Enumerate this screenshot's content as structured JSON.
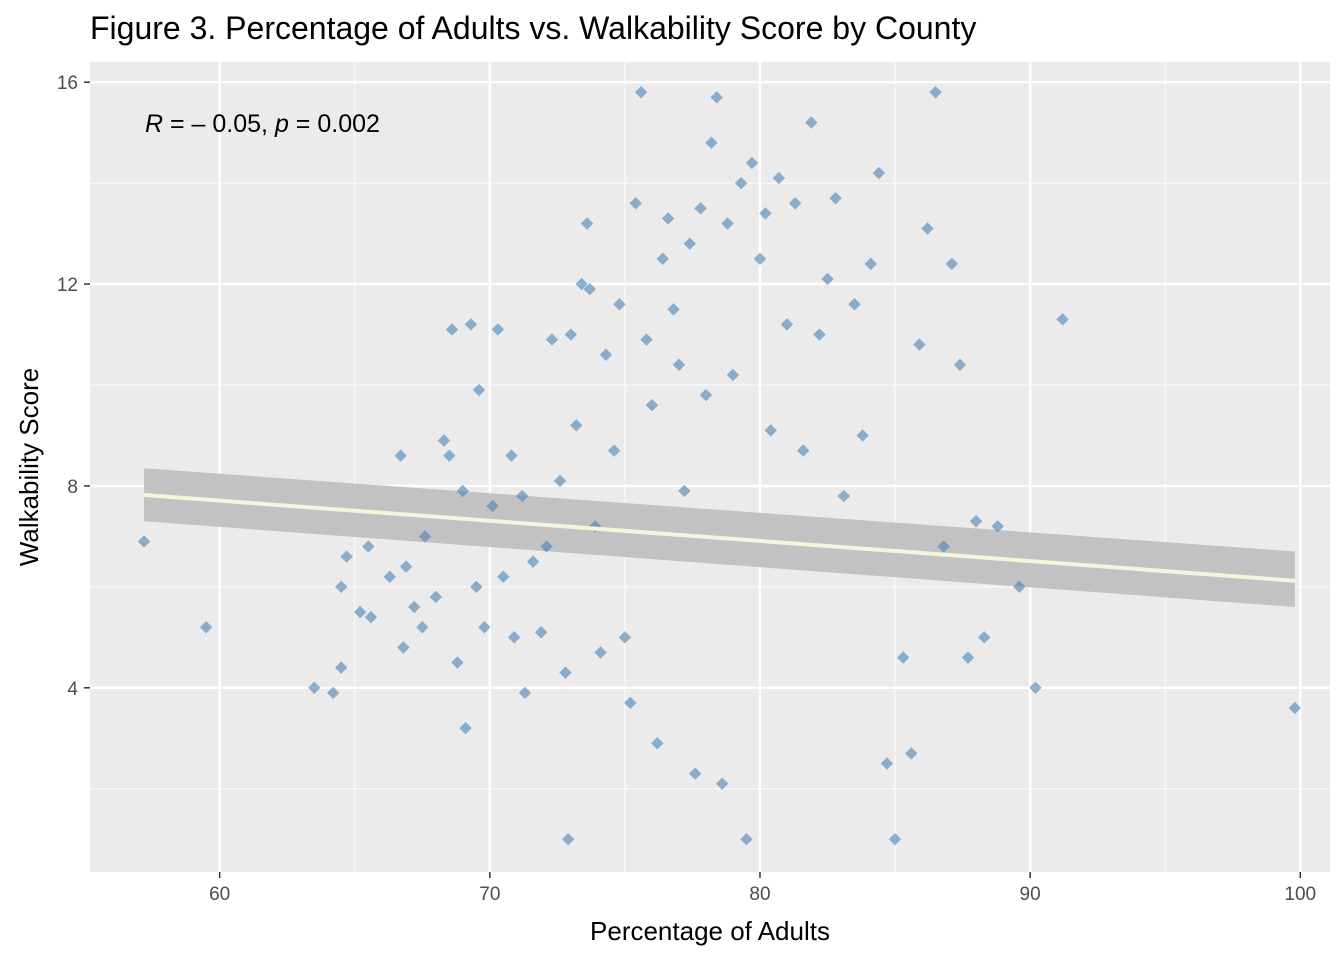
{
  "chart_data": {
    "type": "scatter",
    "title": "Figure 3. Percentage of Adults vs. Walkability Score by County",
    "xlabel": "Percentage of Adults",
    "ylabel": "Walkability Score",
    "xlim": [
      55.2,
      101.1
    ],
    "ylim": [
      0.35,
      16.4
    ],
    "x_ticks": [
      60,
      70,
      80,
      90,
      100
    ],
    "y_ticks": [
      4,
      8,
      12,
      16
    ],
    "grid": true,
    "background": "#ebebeb",
    "point_color": "#4682b4",
    "point_shape": "diamond",
    "annotation": {
      "r_label": "R",
      "r_text": " = – 0.05, ",
      "p_label": "p",
      "p_text": " = 0.002"
    },
    "trend": {
      "x": [
        57.2,
        99.8
      ],
      "y": [
        7.82,
        6.12
      ],
      "band_lower": [
        7.3,
        5.6
      ],
      "band_upper": [
        8.35,
        6.7
      ],
      "line_color": "#f5f5dc",
      "band_color": "#bebebe"
    },
    "points": [
      [
        57.2,
        6.9
      ],
      [
        59.5,
        5.2
      ],
      [
        63.5,
        4.0
      ],
      [
        64.2,
        3.9
      ],
      [
        64.5,
        4.4
      ],
      [
        64.5,
        6.0
      ],
      [
        64.7,
        6.6
      ],
      [
        65.2,
        5.5
      ],
      [
        65.6,
        5.4
      ],
      [
        65.5,
        6.8
      ],
      [
        66.3,
        6.2
      ],
      [
        66.7,
        8.6
      ],
      [
        66.8,
        4.8
      ],
      [
        66.9,
        6.4
      ],
      [
        67.2,
        5.6
      ],
      [
        67.5,
        5.2
      ],
      [
        67.6,
        7.0
      ],
      [
        68.0,
        5.8
      ],
      [
        68.3,
        8.9
      ],
      [
        68.5,
        8.6
      ],
      [
        68.6,
        11.1
      ],
      [
        68.8,
        4.5
      ],
      [
        69.0,
        7.9
      ],
      [
        69.1,
        3.2
      ],
      [
        69.3,
        11.2
      ],
      [
        69.5,
        6.0
      ],
      [
        69.6,
        9.9
      ],
      [
        69.8,
        5.2
      ],
      [
        70.1,
        7.6
      ],
      [
        70.3,
        11.1
      ],
      [
        70.5,
        6.2
      ],
      [
        70.8,
        8.6
      ],
      [
        70.9,
        5.0
      ],
      [
        71.2,
        7.8
      ],
      [
        71.3,
        3.9
      ],
      [
        71.6,
        6.5
      ],
      [
        71.9,
        5.1
      ],
      [
        72.1,
        6.8
      ],
      [
        72.3,
        10.9
      ],
      [
        72.6,
        8.1
      ],
      [
        72.8,
        4.3
      ],
      [
        72.9,
        1.0
      ],
      [
        73.0,
        11.0
      ],
      [
        73.2,
        9.2
      ],
      [
        73.4,
        12.0
      ],
      [
        73.6,
        13.2
      ],
      [
        73.7,
        11.9
      ],
      [
        73.9,
        7.2
      ],
      [
        74.1,
        4.7
      ],
      [
        74.3,
        10.6
      ],
      [
        74.6,
        8.7
      ],
      [
        74.8,
        11.6
      ],
      [
        75.0,
        5.0
      ],
      [
        75.2,
        3.7
      ],
      [
        75.4,
        13.6
      ],
      [
        75.6,
        15.8
      ],
      [
        75.8,
        10.9
      ],
      [
        76.0,
        9.6
      ],
      [
        76.2,
        2.9
      ],
      [
        76.4,
        12.5
      ],
      [
        76.6,
        13.3
      ],
      [
        76.8,
        11.5
      ],
      [
        77.0,
        10.4
      ],
      [
        77.2,
        7.9
      ],
      [
        77.4,
        12.8
      ],
      [
        77.6,
        2.3
      ],
      [
        77.8,
        13.5
      ],
      [
        78.0,
        9.8
      ],
      [
        78.2,
        14.8
      ],
      [
        78.4,
        15.7
      ],
      [
        78.6,
        2.1
      ],
      [
        78.8,
        13.2
      ],
      [
        79.0,
        10.2
      ],
      [
        79.3,
        14.0
      ],
      [
        79.5,
        1.0
      ],
      [
        79.7,
        14.4
      ],
      [
        80.0,
        12.5
      ],
      [
        80.2,
        13.4
      ],
      [
        80.4,
        9.1
      ],
      [
        80.7,
        14.1
      ],
      [
        81.0,
        11.2
      ],
      [
        81.3,
        13.6
      ],
      [
        81.6,
        8.7
      ],
      [
        81.9,
        15.2
      ],
      [
        82.2,
        11.0
      ],
      [
        82.5,
        12.1
      ],
      [
        82.8,
        13.7
      ],
      [
        83.1,
        7.8
      ],
      [
        83.5,
        11.6
      ],
      [
        83.8,
        9.0
      ],
      [
        84.1,
        12.4
      ],
      [
        84.4,
        14.2
      ],
      [
        84.7,
        2.5
      ],
      [
        85.0,
        1.0
      ],
      [
        85.3,
        4.6
      ],
      [
        85.6,
        2.7
      ],
      [
        85.9,
        10.8
      ],
      [
        86.2,
        13.1
      ],
      [
        86.5,
        15.8
      ],
      [
        86.8,
        6.8
      ],
      [
        87.1,
        12.4
      ],
      [
        87.4,
        10.4
      ],
      [
        87.7,
        4.6
      ],
      [
        88.0,
        7.3
      ],
      [
        88.3,
        5.0
      ],
      [
        88.8,
        7.2
      ],
      [
        89.6,
        6.0
      ],
      [
        90.2,
        4.0
      ],
      [
        91.2,
        11.3
      ],
      [
        99.8,
        3.6
      ]
    ]
  }
}
